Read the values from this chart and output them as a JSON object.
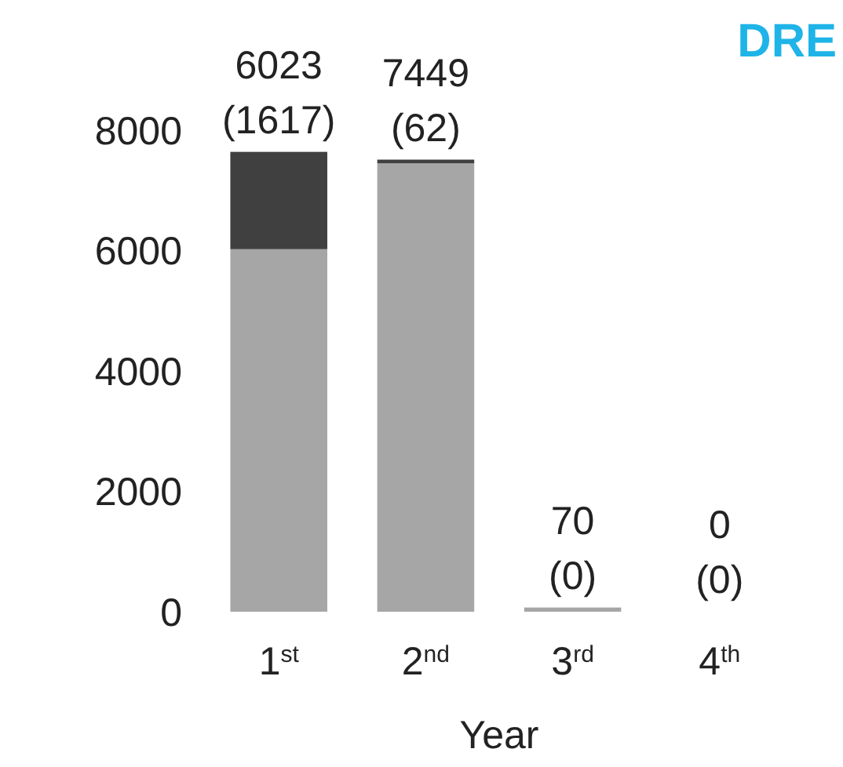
{
  "chart_data": {
    "type": "bar",
    "title": "DRE",
    "xlabel": "Year",
    "stacked": true,
    "categories": [
      "1$^{st}$",
      "2$^{nd}$",
      "3$^{rd}$",
      "4$^{th}$"
    ],
    "series": [
      {
        "color": "#a6a6a6",
        "values": [
          6023,
          7449,
          70,
          0
        ]
      },
      {
        "color": "#404040",
        "values": [
          1617,
          62,
          0,
          0
        ],
        "value_labels": [
          "(1617)",
          "(62)",
          "(0)",
          "(0)"
        ]
      }
    ],
    "annotations": [
      {
        "text": "6023",
        "x": "1$^{st}$",
        "y": 7640
      },
      {
        "text": "7449",
        "x": "2$^{nd}$",
        "y": 7511
      },
      {
        "text": "70",
        "x": "3$^{rd}$",
        "y": 70
      },
      {
        "text": "0",
        "x": "4$^{th}$",
        "y": 0
      }
    ],
    "ylim": [
      0,
      8000
    ],
    "yticks": [
      0,
      2000,
      4000,
      6000,
      8000
    ],
    "grid": false
  }
}
